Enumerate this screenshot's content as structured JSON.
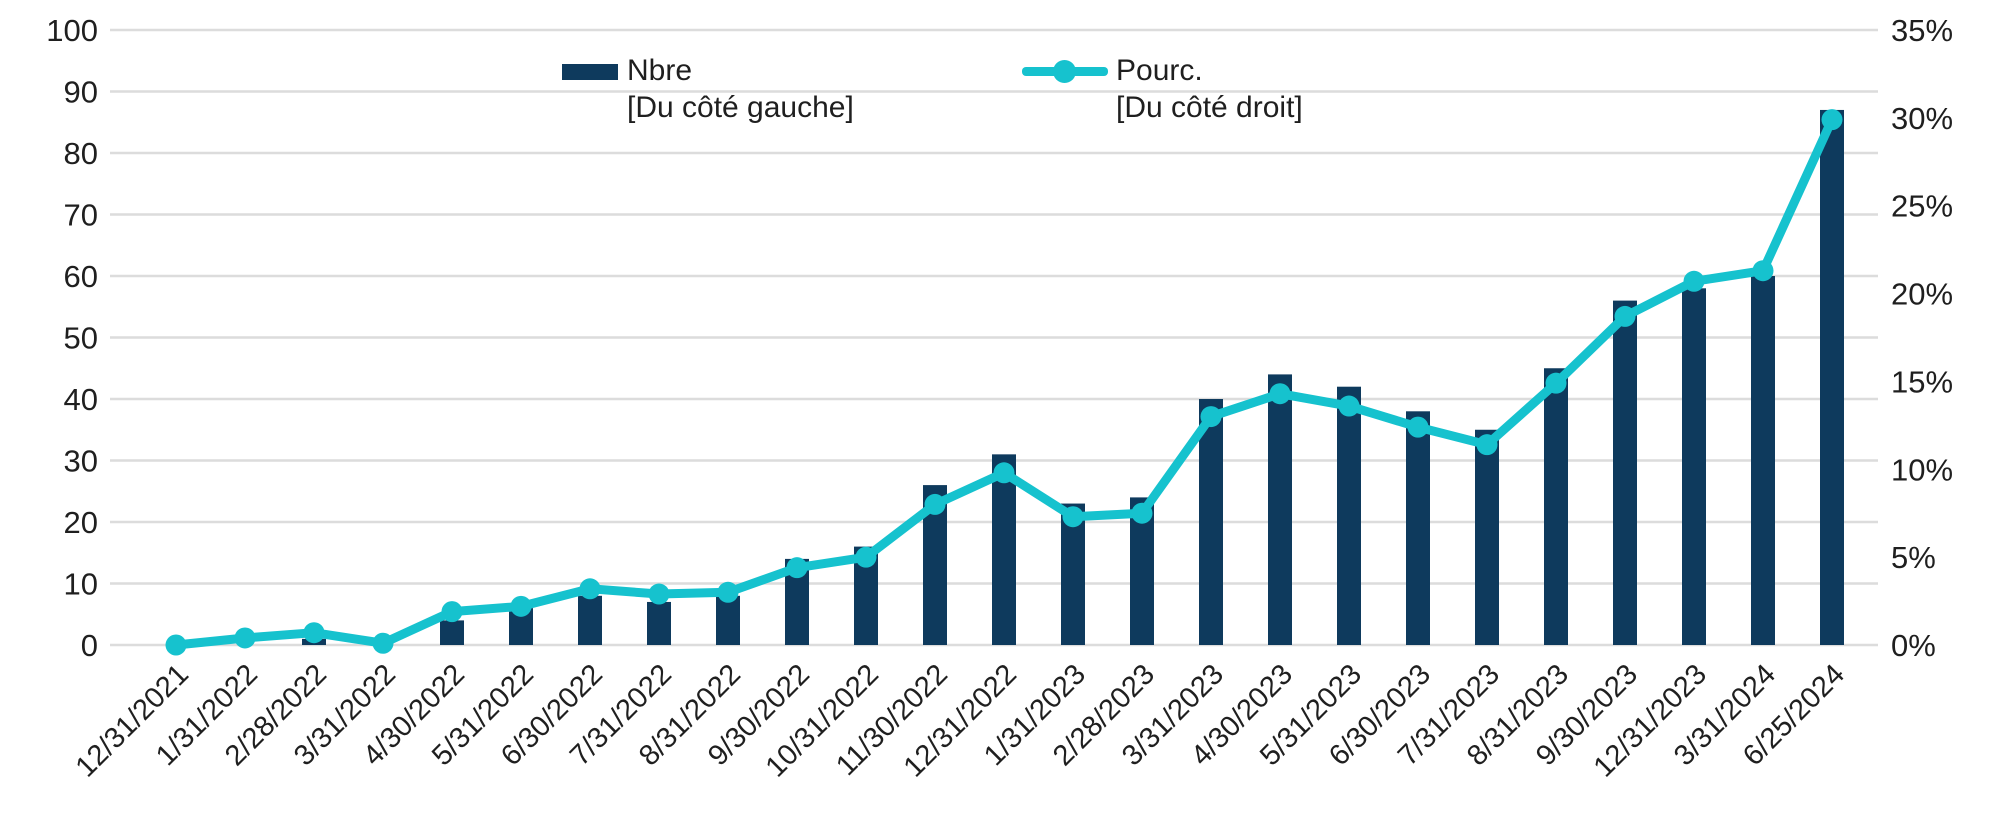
{
  "legend": {
    "series1": {
      "label": "Nbre",
      "sublabel": "[Du côté gauche]"
    },
    "series2": {
      "label": "Pourc.",
      "sublabel": "[Du côté droit]"
    }
  },
  "colors": {
    "bar": "#0e3a5d",
    "line": "#16c2ce",
    "grid": "#dcdcdc",
    "text": "#1f1f1f"
  },
  "chart_data": {
    "type": "bar",
    "subtype": "combo-bar-line-dual-axis",
    "title": "",
    "xlabel": "",
    "ylabel_left": "",
    "ylabel_right": "",
    "grid": true,
    "legend_position": "top-center",
    "categories": [
      "12/31/2021",
      "1/31/2022",
      "2/28/2022",
      "3/31/2022",
      "4/30/2022",
      "5/31/2022",
      "6/30/2022",
      "7/31/2022",
      "8/31/2022",
      "9/30/2022",
      "10/31/2022",
      "11/30/2022",
      "12/31/2022",
      "1/31/2023",
      "2/28/2023",
      "3/31/2023",
      "4/30/2023",
      "5/31/2023",
      "6/30/2023",
      "7/31/2023",
      "8/31/2023",
      "9/30/2023",
      "12/31/2023",
      "3/31/2024",
      "6/25/2024"
    ],
    "series": [
      {
        "name": "Nbre",
        "type": "bar",
        "axis": "left",
        "values": [
          0,
          0,
          1,
          0,
          4,
          6,
          8,
          7,
          8,
          14,
          16,
          26,
          31,
          23,
          24,
          40,
          44,
          42,
          38,
          35,
          45,
          56,
          58,
          60,
          87
        ]
      },
      {
        "name": "Pourc.",
        "type": "line",
        "axis": "right",
        "values": [
          0,
          0.4,
          0.7,
          0.1,
          1.9,
          2.2,
          3.2,
          2.9,
          3.0,
          4.4,
          5.0,
          8.0,
          9.8,
          7.3,
          7.5,
          13.0,
          14.3,
          13.6,
          12.4,
          11.4,
          14.9,
          18.7,
          20.7,
          21.3,
          29.9
        ]
      }
    ],
    "left_axis": {
      "min": 0,
      "max": 100,
      "step": 10,
      "tick_labels": [
        "0",
        "10",
        "20",
        "30",
        "40",
        "50",
        "60",
        "70",
        "80",
        "90",
        "100"
      ]
    },
    "right_axis": {
      "min": 0,
      "max": 35,
      "step": 5,
      "tick_labels": [
        "0%",
        "5%",
        "10%",
        "15%",
        "20%",
        "25%",
        "30%",
        "35%"
      ]
    }
  }
}
